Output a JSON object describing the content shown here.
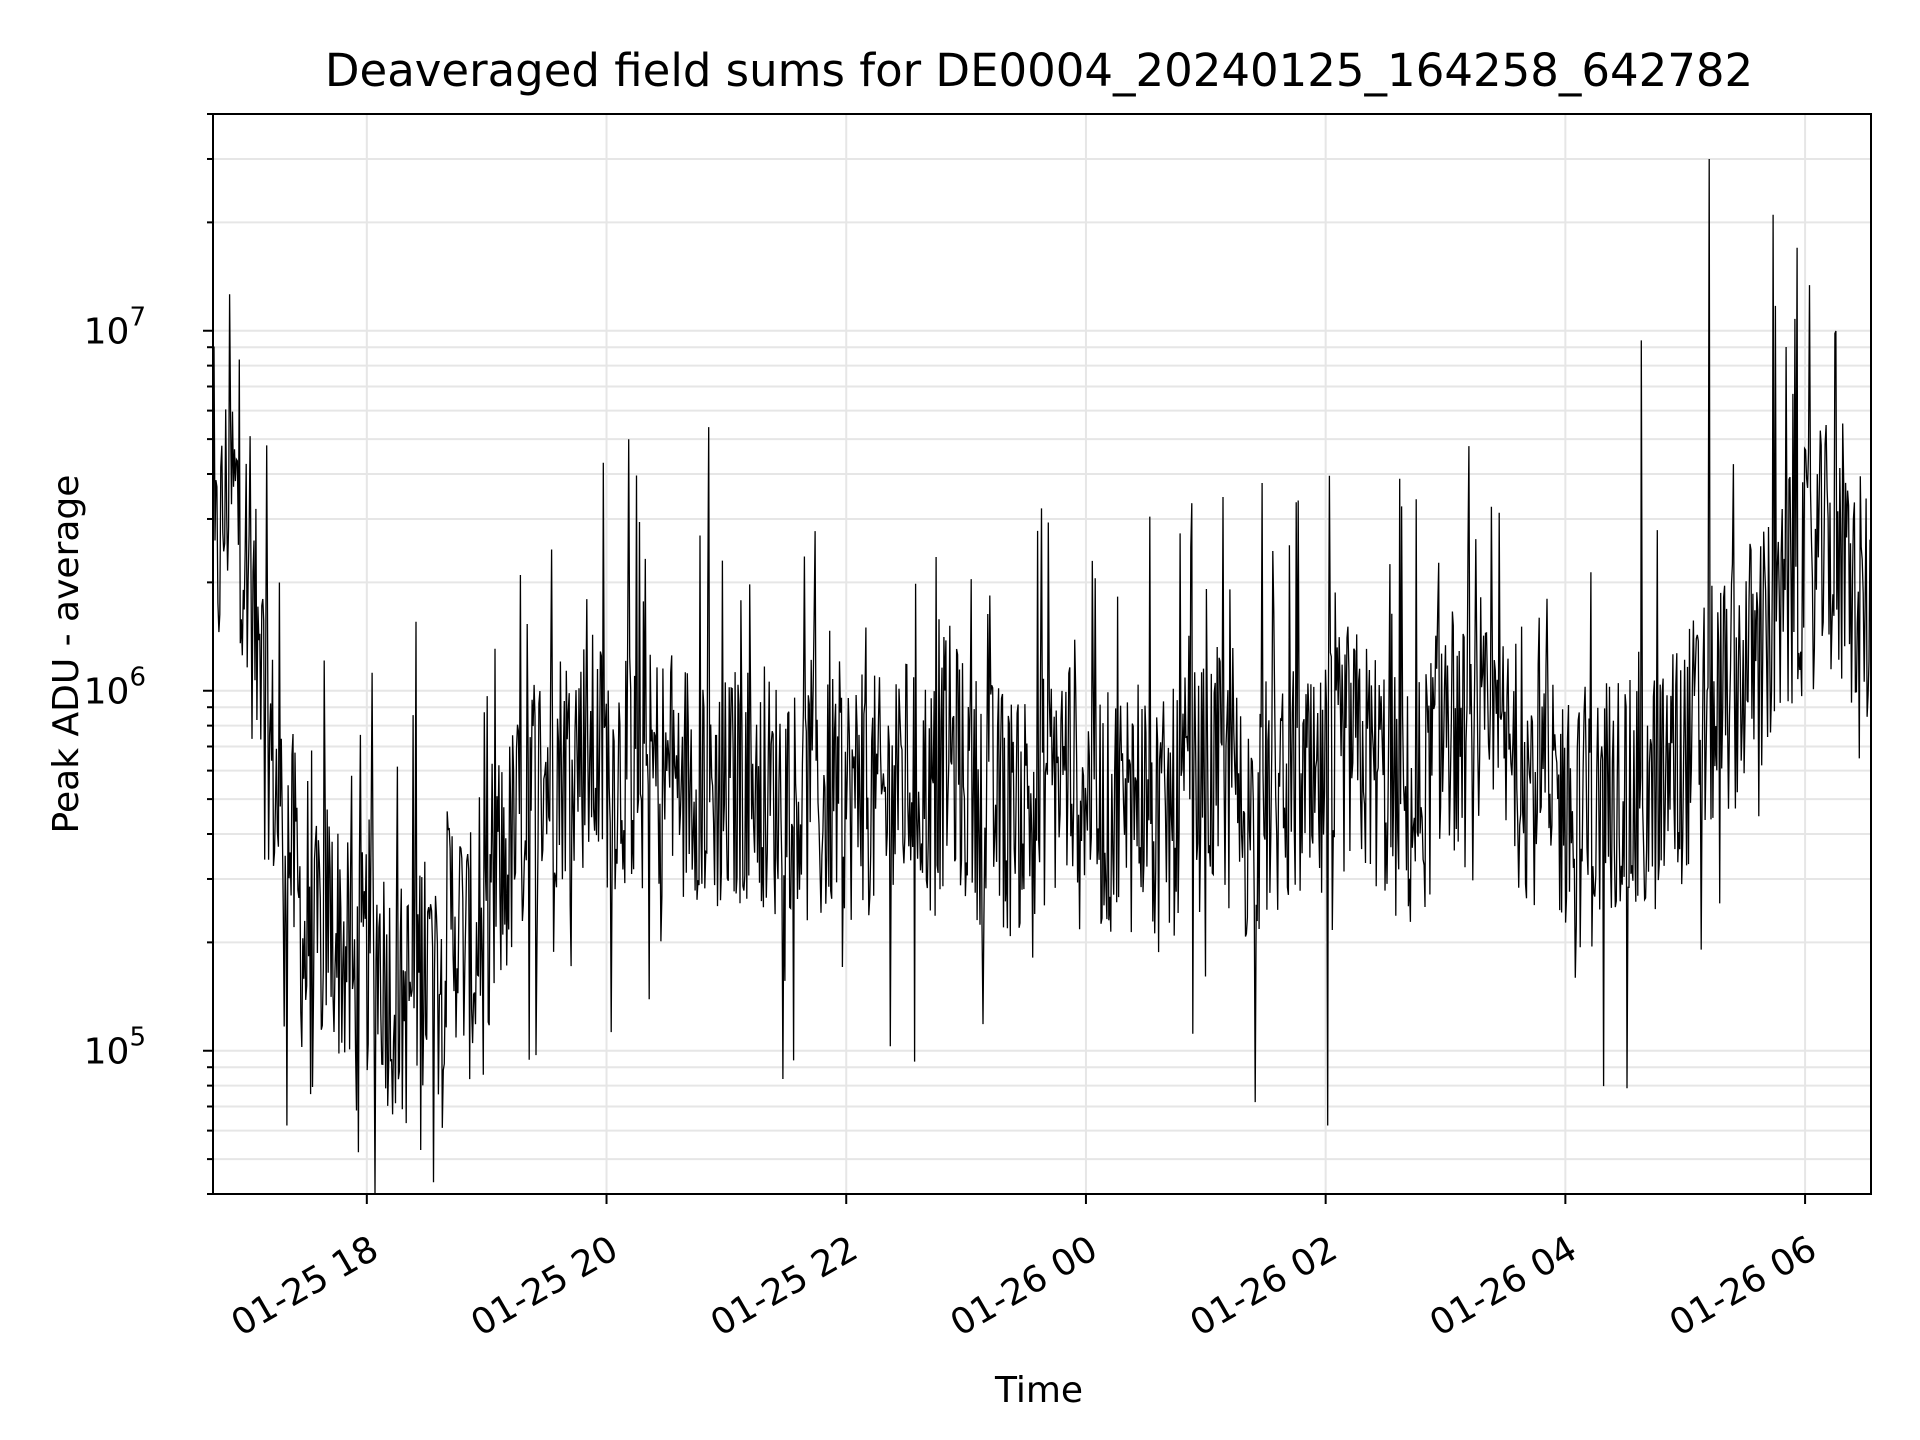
{
  "chart_data": {
    "type": "line",
    "title": "Deaveraged field sums for DE0004_20240125_164258_642782",
    "xlabel": "Time",
    "ylabel": "Peak ADU - average",
    "x_tick_labels": [
      "01-25 18",
      "01-25 20",
      "01-25 22",
      "01-26 00",
      "01-26 02",
      "01-26 04",
      "01-26 06"
    ],
    "y_tick_labels": [
      {
        "base": "10",
        "exp": "5"
      },
      {
        "base": "10",
        "exp": "6"
      },
      {
        "base": "10",
        "exp": "7"
      }
    ],
    "xlim": [
      "01-25 16:43",
      "01-26 06:33"
    ],
    "ylim": [
      40000,
      40000000
    ],
    "y_scale": "log",
    "grid": true,
    "legend": "none",
    "line_color": "#000000",
    "grid_color": "#e6e6e6",
    "series": [
      {
        "time_step_minutes": 8,
        "x": [
          "01-25 16:43",
          "01-25 16:51",
          "01-25 16:59",
          "01-25 17:07",
          "01-25 17:15",
          "01-25 17:23",
          "01-25 17:31",
          "01-25 17:39",
          "01-25 17:47",
          "01-25 17:55",
          "01-25 18:03",
          "01-25 18:11",
          "01-25 18:19",
          "01-25 18:27",
          "01-25 18:35",
          "01-25 18:43",
          "01-25 18:51",
          "01-25 18:59",
          "01-25 19:07",
          "01-25 19:15",
          "01-25 19:23",
          "01-25 19:31",
          "01-25 19:39",
          "01-25 19:47",
          "01-25 19:55",
          "01-25 20:03",
          "01-25 20:11",
          "01-25 20:19",
          "01-25 20:27",
          "01-25 20:35",
          "01-25 20:43",
          "01-25 20:51",
          "01-25 20:59",
          "01-25 21:07",
          "01-25 21:15",
          "01-25 21:23",
          "01-25 21:31",
          "01-25 21:39",
          "01-25 21:47",
          "01-25 21:55",
          "01-25 22:03",
          "01-25 22:11",
          "01-25 22:19",
          "01-25 22:27",
          "01-25 22:35",
          "01-25 22:43",
          "01-25 22:51",
          "01-25 22:59",
          "01-25 23:07",
          "01-25 23:15",
          "01-25 23:23",
          "01-25 23:31",
          "01-25 23:39",
          "01-25 23:47",
          "01-25 23:55",
          "01-26 00:03",
          "01-26 00:11",
          "01-26 00:19",
          "01-26 00:27",
          "01-26 00:35",
          "01-26 00:43",
          "01-26 00:51",
          "01-26 00:59",
          "01-26 01:07",
          "01-26 01:15",
          "01-26 01:23",
          "01-26 01:31",
          "01-26 01:39",
          "01-26 01:47",
          "01-26 01:55",
          "01-26 02:03",
          "01-26 02:11",
          "01-26 02:19",
          "01-26 02:27",
          "01-26 02:35",
          "01-26 02:43",
          "01-26 02:51",
          "01-26 02:59",
          "01-26 03:07",
          "01-26 03:15",
          "01-26 03:23",
          "01-26 03:31",
          "01-26 03:39",
          "01-26 03:47",
          "01-26 03:55",
          "01-26 04:03",
          "01-26 04:11",
          "01-26 04:19",
          "01-26 04:27",
          "01-26 04:35",
          "01-26 04:43",
          "01-26 04:51",
          "01-26 04:59",
          "01-26 05:07",
          "01-26 05:15",
          "01-26 05:23",
          "01-26 05:31",
          "01-26 05:39",
          "01-26 05:47",
          "01-26 05:55",
          "01-26 06:03",
          "01-26 06:11",
          "01-26 06:19",
          "01-26 06:27",
          "01-26 06:33"
        ],
        "y": [
          1800000,
          3900000,
          2600000,
          1100000,
          500000,
          350000,
          150000,
          250000,
          200000,
          140000,
          220000,
          150000,
          130000,
          180000,
          160000,
          250000,
          180000,
          190000,
          300000,
          400000,
          550000,
          600000,
          650000,
          700000,
          650000,
          600000,
          650000,
          580000,
          600000,
          550000,
          600000,
          550000,
          500000,
          550000,
          600000,
          500000,
          550000,
          500000,
          450000,
          550000,
          500000,
          520000,
          480000,
          550000,
          600000,
          500000,
          700000,
          550000,
          500000,
          480000,
          450000,
          500000,
          550000,
          600000,
          650000,
          500000,
          450000,
          500000,
          550000,
          400000,
          450000,
          500000,
          550000,
          600000,
          480000,
          420000,
          500000,
          520000,
          550000,
          450000,
          600000,
          700000,
          650000,
          600000,
          500000,
          450000,
          550000,
          900000,
          700000,
          650000,
          700000,
          650000,
          600000,
          550000,
          500000,
          450000,
          400000,
          500000,
          550000,
          450000,
          500000,
          600000,
          650000,
          800000,
          900000,
          1000000,
          1200000,
          1300000,
          1500000,
          2000000,
          2200000,
          2500000,
          2000000,
          1800000,
          1600000
        ],
        "notable_peaks": [
          {
            "x": "01-26 05:12",
            "y": 30000000
          },
          {
            "x": "01-26 05:44",
            "y": 21000000
          },
          {
            "x": "01-26 05:56",
            "y": 17000000
          },
          {
            "x": "01-26 04:38",
            "y": 9400000
          }
        ],
        "notable_dips": [
          {
            "x": "01-25 18:27",
            "y": 53000
          },
          {
            "x": "01-26 02:01",
            "y": 62000
          },
          {
            "x": "01-25 17:20",
            "y": 62000
          }
        ]
      }
    ]
  }
}
